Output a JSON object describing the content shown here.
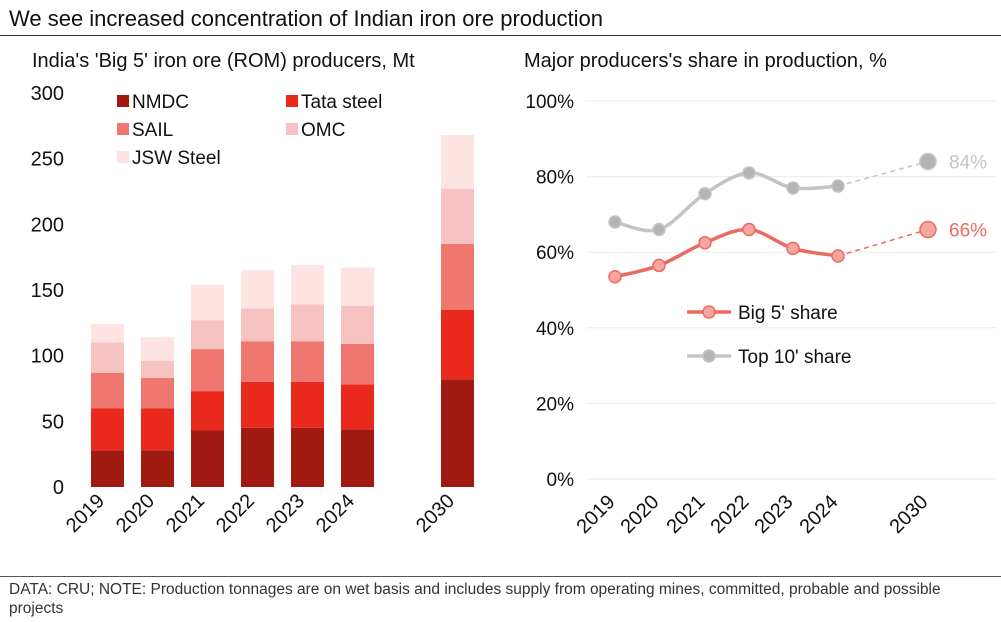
{
  "title": "We see increased concentration of Indian iron ore production",
  "footnote": "DATA: CRU; NOTE: Production tonnages are on wet basis and includes supply from operating mines, committed, probable and possible projects",
  "chart_data": [
    {
      "type": "bar",
      "stacked": true,
      "title": "India's 'Big 5' iron ore (ROM) producers, Mt",
      "categories": [
        "2019",
        "2020",
        "2021",
        "2022",
        "2023",
        "2024",
        "2030"
      ],
      "ylim": [
        0,
        300
      ],
      "yticks": [
        "0",
        "50",
        "100",
        "150",
        "200",
        "250",
        "300"
      ],
      "legend": "top-left",
      "series": [
        {
          "name": "NMDC",
          "color": "#a01a12",
          "values": [
            28,
            28,
            43,
            45,
            45,
            44,
            82
          ]
        },
        {
          "name": "Tata steel",
          "color": "#e8291c",
          "values": [
            32,
            32,
            30,
            35,
            35,
            34,
            53
          ]
        },
        {
          "name": "SAIL",
          "color": "#f07670",
          "values": [
            27,
            23,
            32,
            31,
            31,
            31,
            50
          ]
        },
        {
          "name": "OMC",
          "color": "#f7c3c0",
          "values": [
            23,
            13,
            22,
            25,
            28,
            29,
            42
          ]
        },
        {
          "name": "JSW Steel",
          "color": "#fde3e2",
          "values": [
            14,
            18,
            27,
            29,
            30,
            29,
            41
          ]
        }
      ]
    },
    {
      "type": "line",
      "title": "Major producers's share in production, %",
      "categories": [
        "2019",
        "2020",
        "2021",
        "2022",
        "2023",
        "2024",
        "2030"
      ],
      "ylim": [
        0,
        100
      ],
      "yticks": [
        "0%",
        "20%",
        "40%",
        "60%",
        "80%",
        "100%"
      ],
      "legend": "center-right",
      "series": [
        {
          "name": "Big 5' share",
          "color": "#ec6a60",
          "marker_fill": "#f6a6a0",
          "values": [
            53.5,
            56.5,
            62.5,
            66,
            61,
            59,
            66
          ],
          "end_label": "66%"
        },
        {
          "name": "Top 10' share",
          "color": "#c4c4c4",
          "marker_fill": "#b4b4b4",
          "values": [
            68,
            66,
            75.5,
            81,
            77,
            77.5,
            84
          ],
          "end_label": "84%"
        }
      ]
    }
  ]
}
